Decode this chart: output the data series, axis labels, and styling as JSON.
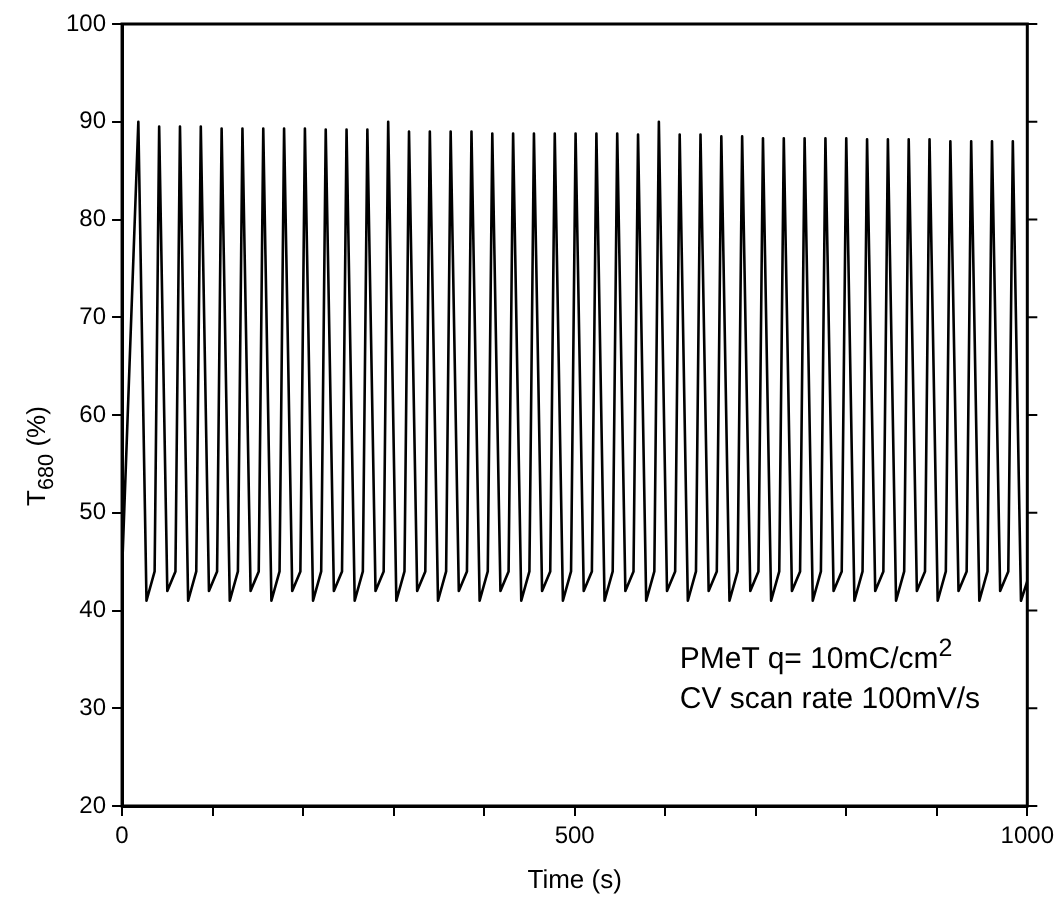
{
  "chart_data": {
    "type": "line",
    "xlabel": "Time (s)",
    "ylabel": "T$_{680}$ (%)",
    "annotations": [
      "PMeT q= 10mC/cm$^{2}$",
      "CV scan rate 100mV/s"
    ],
    "xlim": [
      0,
      1000
    ],
    "xticks": [
      0,
      {
        "value": 100,
        "label": null
      },
      {
        "value": 200,
        "label": null
      },
      {
        "value": 300,
        "label": null
      },
      {
        "value": 400,
        "label": null
      },
      500,
      {
        "value": 600,
        "label": null
      },
      {
        "value": 700,
        "label": null
      },
      {
        "value": 800,
        "label": null
      },
      {
        "value": 900,
        "label": null
      },
      1000
    ],
    "ylim": [
      20,
      100
    ],
    "yticks": [
      20,
      30,
      40,
      50,
      60,
      70,
      80,
      90,
      100
    ],
    "grid": false,
    "legend": false,
    "marker": "none",
    "line_style": "solid",
    "series": [
      {
        "color": "#000000",
        "x": [
          0,
          18,
          27,
          36,
          41,
          50,
          59,
          64,
          73,
          82,
          87,
          96,
          105,
          110,
          119,
          128,
          133,
          142,
          151,
          156,
          165,
          174,
          179,
          188,
          197,
          202,
          211,
          220,
          225,
          234,
          243,
          248,
          257,
          266,
          271,
          280,
          289,
          294,
          303,
          312,
          317,
          326,
          335,
          340,
          349,
          358,
          363,
          372,
          381,
          386,
          395,
          404,
          409,
          418,
          427,
          432,
          441,
          450,
          455,
          464,
          473,
          478,
          487,
          496,
          501,
          510,
          519,
          524,
          533,
          542,
          547,
          556,
          565,
          570,
          579,
          588,
          593,
          602,
          611,
          616,
          625,
          634,
          639,
          648,
          657,
          662,
          671,
          680,
          685,
          694,
          703,
          708,
          717,
          726,
          731,
          740,
          749,
          754,
          763,
          772,
          777,
          786,
          795,
          800,
          809,
          818,
          823,
          832,
          841,
          846,
          855,
          864,
          869,
          878,
          887,
          892,
          901,
          910,
          915,
          924,
          933,
          938,
          947,
          956,
          961,
          970,
          979,
          984,
          993,
          1000
        ],
        "values": [
          44,
          90,
          41,
          44,
          89.5,
          42,
          44,
          89.5,
          41,
          44,
          89.5,
          42,
          44,
          89.3,
          41,
          44,
          89.3,
          42,
          44,
          89.3,
          41,
          44,
          89.3,
          42,
          44,
          89.3,
          41,
          44,
          89.2,
          42,
          44,
          89.2,
          41,
          44,
          89.2,
          42,
          44,
          90,
          41,
          44,
          89,
          42,
          44,
          89,
          41,
          44,
          89,
          42,
          44,
          89,
          41,
          44,
          88.8,
          42,
          44,
          88.8,
          41,
          44,
          88.8,
          42,
          44,
          88.8,
          41,
          44,
          88.8,
          42,
          44,
          88.8,
          41,
          44,
          88.8,
          42,
          44,
          88.7,
          41,
          44,
          90,
          42,
          44,
          88.7,
          41,
          44,
          88.7,
          42,
          44,
          88.5,
          41,
          44,
          88.5,
          42,
          44,
          88.3,
          41,
          44,
          88.3,
          42,
          44,
          88.3,
          41,
          44,
          88.3,
          42,
          44,
          88.3,
          41,
          44,
          88.2,
          42,
          44,
          88.2,
          41,
          44,
          88.2,
          42,
          44,
          88.2,
          41,
          44,
          88,
          42,
          44,
          88,
          41,
          44,
          88,
          42,
          44,
          88,
          41,
          43
        ]
      }
    ]
  }
}
